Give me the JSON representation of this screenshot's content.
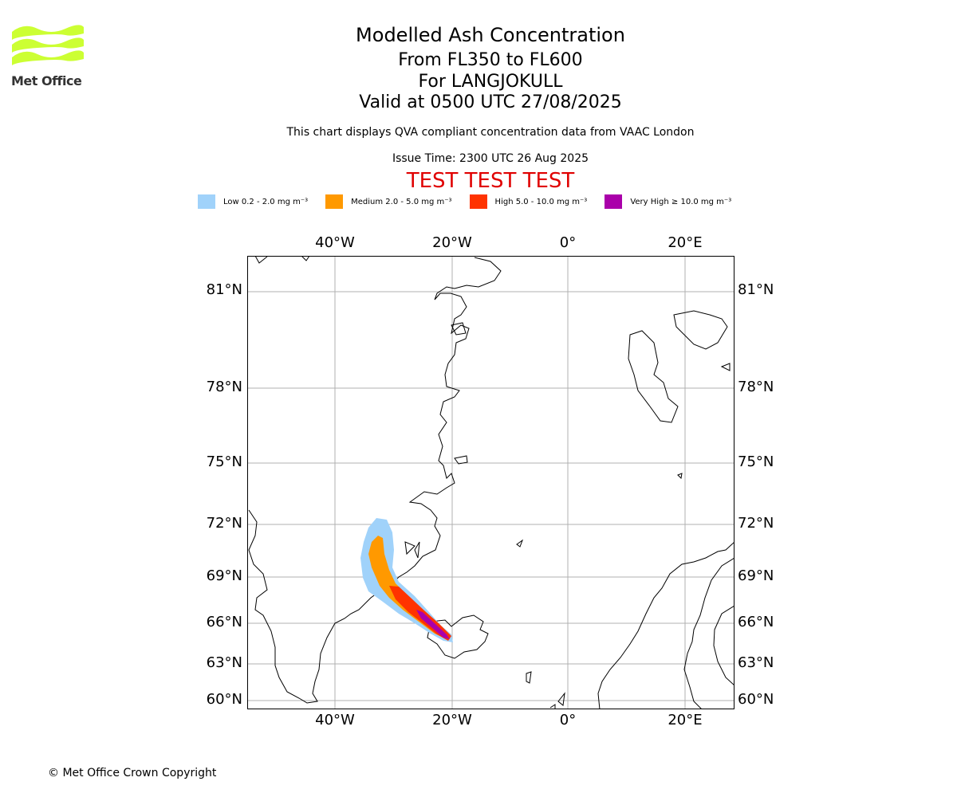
{
  "header": {
    "title": "Modelled Ash Concentration",
    "line1": "From FL350 to FL600",
    "line2": "For LANGJOKULL",
    "line3": "Valid at 0500 UTC 27/08/2025",
    "description": "This chart displays QVA compliant concentration data from VAAC London",
    "issue_time": "Issue Time: 2300 UTC 26 Aug 2025",
    "test_banner": "TEST TEST TEST"
  },
  "logo": {
    "text": "Met Office",
    "color": "#ccff33"
  },
  "legend": [
    {
      "label": "Low 0.2 - 2.0 mg m⁻³",
      "color": "#a0d2fa"
    },
    {
      "label": "Medium 2.0 - 5.0 mg m⁻³",
      "color": "#ff9900"
    },
    {
      "label": "High 5.0 - 10.0 mg m⁻³",
      "color": "#ff3300"
    },
    {
      "label": "Very High ≥ 10.0 mg m⁻³",
      "color": "#aa00aa"
    }
  ],
  "axes": {
    "lat_labels": [
      "81°N",
      "78°N",
      "75°N",
      "72°N",
      "69°N",
      "66°N",
      "63°N",
      "60°N"
    ],
    "lon_labels": [
      "40°W",
      "20°W",
      "0°",
      "20°E"
    ]
  },
  "footer": {
    "copyright": "© Met Office Crown Copyright"
  }
}
